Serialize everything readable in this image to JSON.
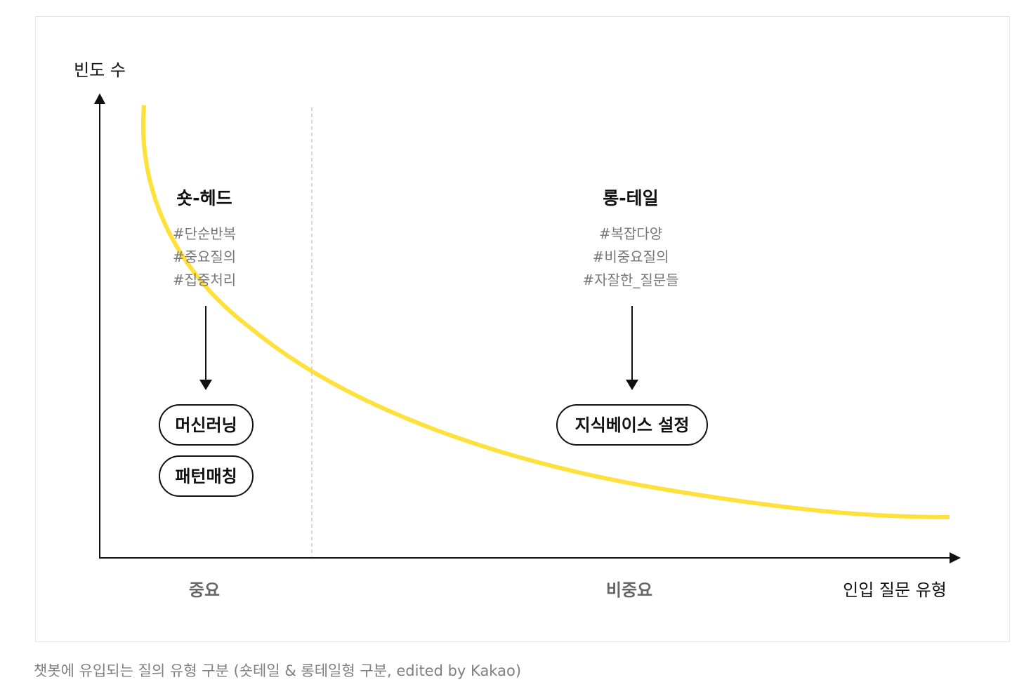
{
  "y_axis_label": "빈도 수",
  "x_axis_label": "인입 질문 유형",
  "left_section": {
    "title": "숏-헤드",
    "tags": [
      "#단순반복",
      "#중요질의",
      "#집중처리"
    ],
    "pills": [
      "머신러닝",
      "패턴매칭"
    ],
    "category": "중요"
  },
  "right_section": {
    "title": "롱-테일",
    "tags": [
      "#복잡다양",
      "#비중요질의",
      "#자잘한_질문들"
    ],
    "pills": [
      "지식베이스 설정"
    ],
    "category": "비중요"
  },
  "caption": "챗봇에 유입되는 질의 유형 구분 (숏테일 & 롱테일형 구분, edited by Kakao)",
  "colors": {
    "curve": "#FFE13C",
    "axis": "#111111",
    "divider": "#cccccc",
    "tag_text": "#777777",
    "category_text": "#666666"
  }
}
